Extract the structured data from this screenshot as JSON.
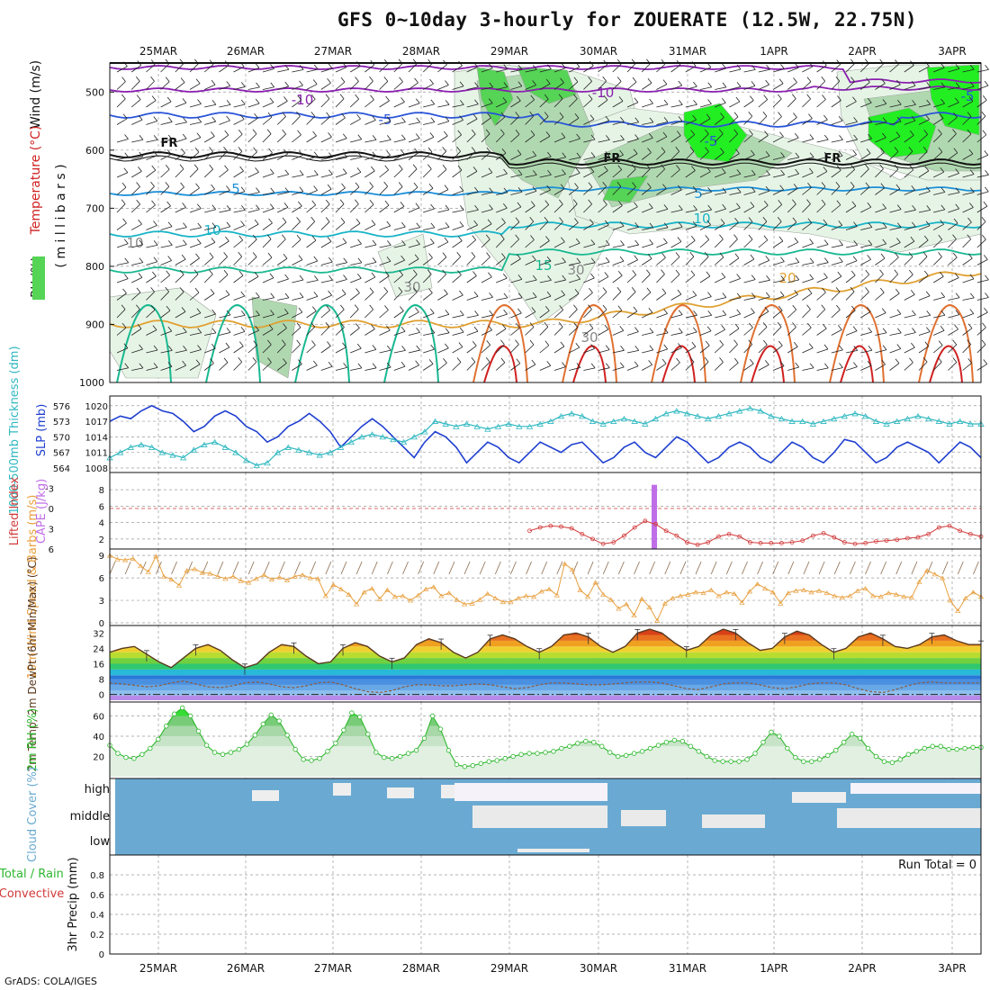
{
  "title": "GFS 0~10day 3-hourly for ZOUERATE (12.5W, 22.75N)",
  "credit": "GrADS: COLA/IGES",
  "date_labels": [
    "25MAR",
    "26MAR",
    "27MAR",
    "28MAR",
    "29MAR",
    "30MAR",
    "31MAR",
    "1APR",
    "2APR",
    "3APR"
  ],
  "colors": {
    "temp_m10": "#8a1fb0",
    "temp_m5": "#2a55d8",
    "temp_fr": "#111111",
    "temp_5": "#1b8fd8",
    "temp_10": "#18b4c8",
    "temp_15": "#18b890",
    "temp_20": "#e0a030",
    "temp_25": "#e07030",
    "temp_30": "#d02020",
    "rh_light": "#e6f4e6",
    "rh_mid": "#b0d8b0",
    "rh_dark": "#55d455",
    "rh_bright": "#22ee22",
    "slp": "#1f3fd0",
    "thickness": "#2fb8c0",
    "lifted_index": "#d23a3a",
    "cape": "#c06ee8",
    "wind_speed": "#e8a040",
    "cloud": "#6aaad2",
    "rh2m": "#2db82d"
  },
  "chart_data": [
    {
      "type": "line",
      "name": "Wind / Temperature / RH cross-section",
      "ylabel": "( m i l l i b a r s )",
      "ylabels_left": [
        "Wind (m/s)",
        "Temperature (°C)",
        "RH (%)"
      ],
      "yticks": [
        500,
        600,
        700,
        800,
        900,
        1000
      ],
      "ylim": [
        1000,
        450
      ],
      "x_axis": "time (3-hourly)",
      "contour_labels": [
        "-10",
        "-10",
        "-5",
        "-5",
        "-5",
        "FR",
        "FR",
        "FR",
        "5",
        "5",
        "10",
        "10",
        "15",
        "20",
        "10",
        "30",
        "30",
        "30"
      ]
    },
    {
      "type": "line",
      "name": "SLP / 1000-500mb thickness",
      "ylabel_left": "1000-500mb Thickness (dm)",
      "ylabel_right": "SLP (mb)",
      "yticks_left": [
        564,
        567,
        570,
        573,
        576
      ],
      "yticks_right": [
        1008,
        1011,
        1014,
        1017,
        1020
      ],
      "slp": [
        1017,
        1018,
        1017.5,
        1019,
        1020,
        1019,
        1018.5,
        1017,
        1015,
        1016,
        1018,
        1019,
        1018,
        1016,
        1015,
        1013,
        1014,
        1016,
        1017,
        1018.5,
        1017,
        1015,
        1012,
        1014,
        1016,
        1017.5,
        1016,
        1014,
        1012,
        1010,
        1013,
        1015,
        1014,
        1012,
        1009,
        1011,
        1013,
        1012,
        1010,
        1009,
        1011,
        1013,
        1012,
        1011,
        1012.5,
        1013,
        1011,
        1009,
        1010,
        1012,
        1013,
        1011,
        1010,
        1012,
        1014,
        1013,
        1011,
        1009,
        1010,
        1012,
        1013,
        1012,
        1010,
        1009,
        1011,
        1013,
        1012,
        1010,
        1009,
        1011,
        1013.5,
        1013,
        1011,
        1009,
        1010,
        1012,
        1013,
        1012,
        1011,
        1009,
        1011,
        1013,
        1012,
        1010
      ],
      "thickness": [
        566,
        567,
        568,
        568.5,
        568,
        567,
        566.5,
        566,
        567.5,
        568.5,
        569,
        568,
        567,
        565.5,
        564.5,
        565,
        567,
        568,
        567.5,
        567,
        566.5,
        567,
        568,
        569,
        570,
        570.5,
        570,
        569.5,
        569,
        570,
        571,
        573,
        572.5,
        572,
        572.5,
        572,
        571.5,
        572,
        572.5,
        572,
        572,
        572.5,
        573,
        574,
        574.5,
        574,
        573,
        572.5,
        573,
        573.5,
        573,
        572.5,
        573.5,
        574.5,
        575,
        574.5,
        574,
        573.5,
        574,
        574.5,
        575,
        575.5,
        575,
        574,
        573.5,
        573,
        573,
        572.5,
        573,
        573.5,
        574,
        574.5,
        574,
        573,
        572.5,
        573,
        573.5,
        574,
        573.5,
        573,
        572.5,
        573,
        572.5,
        572.5
      ]
    },
    {
      "type": "bar",
      "name": "Lifted Index / CAPE",
      "ylabel_left": "Lifted Index",
      "ylabel_right": "CAPE (J/kg)",
      "yticks_left": [
        -3,
        0,
        3,
        6
      ],
      "yticks_right": [
        2,
        4,
        6,
        8
      ],
      "lifted_index_dashed_zero": 0,
      "cape_spike": {
        "label": "31MAR",
        "value": 8.6
      },
      "lifted_index": [
        null,
        null,
        null,
        null,
        null,
        null,
        null,
        null,
        null,
        null,
        null,
        null,
        null,
        null,
        null,
        null,
        null,
        null,
        null,
        null,
        null,
        null,
        null,
        null,
        null,
        null,
        null,
        null,
        null,
        null,
        null,
        null,
        null,
        null,
        null,
        null,
        null,
        null,
        null,
        null,
        3,
        3.4,
        3.6,
        3.5,
        3.3,
        2.6,
        2,
        1.4,
        1.6,
        2.4,
        3.4,
        4.2,
        3.8,
        3,
        2.4,
        1.6,
        1.3,
        1.6,
        2.3,
        2.6,
        2.3,
        1.6,
        1.5,
        1.5,
        1.5,
        1.6,
        1.8,
        2.4,
        2.7,
        2.2,
        1.6,
        1.4,
        1.5,
        1.7,
        1.8,
        1.9,
        2.1,
        2.2,
        2.6,
        3.4,
        3.6,
        3,
        2.6,
        2.3
      ]
    },
    {
      "type": "line",
      "name": "10m Wind Speed & Barbs",
      "ylabel": "10m Wind Speed & Barbs (m/s)",
      "yticks": [
        0,
        3,
        6,
        9
      ],
      "ylim": [
        0,
        9.5
      ],
      "values": [
        9,
        8.5,
        8.4,
        8.6,
        7.6,
        6.8,
        8.9,
        6.2,
        5.8,
        5,
        7,
        7.2,
        6.7,
        6.6,
        6.2,
        5.9,
        6.2,
        5.6,
        5.4,
        5.9,
        6.4,
        5.8,
        6.1,
        5.7,
        6.2,
        6.4,
        6,
        5.9,
        3.6,
        5.1,
        4.5,
        3.8,
        2.5,
        4.1,
        4.6,
        3.2,
        4.4,
        3.5,
        3.6,
        3,
        3.7,
        4.5,
        4.8,
        3.6,
        4,
        3.1,
        2.5,
        2.6,
        3.1,
        3.9,
        3.3,
        2.8,
        2.8,
        3.3,
        3.6,
        3.5,
        4.2,
        4.5,
        3.7,
        7.9,
        7.1,
        4.4,
        3.5,
        5.4,
        3.8,
        3.1,
        1.9,
        2.5,
        1,
        3.2,
        2.1,
        0.3,
        2.6,
        3.3,
        3.6,
        3.8,
        4.1,
        4,
        4.4,
        3.6,
        4.1,
        3.9,
        2.7,
        4.2,
        5.2,
        4.6,
        4.1,
        2.6,
        4,
        4.3,
        4.4,
        4.1,
        4.3,
        4,
        3.6,
        3.4,
        3.6,
        4.3,
        4.6,
        3.6,
        3.5,
        4,
        3.8,
        3.5,
        3.4,
        5.5,
        7,
        6.5,
        6,
        3,
        1.6,
        3.3,
        4.1,
        3.5
      ]
    },
    {
      "type": "area",
      "name": "2m Temp / 2m DewPt",
      "ylabel": "2m Temp, 2m DewPt (6hr Min/Max) (°C)",
      "yticks": [
        0,
        8,
        16,
        24,
        32
      ],
      "ylim": [
        -3,
        35
      ],
      "temp": [
        22,
        24,
        25,
        21,
        17,
        14,
        19,
        24,
        26,
        23,
        18,
        14,
        16,
        22,
        26,
        25,
        20,
        16,
        17,
        24,
        27,
        25,
        20,
        17,
        19,
        26,
        29,
        27,
        22,
        19,
        22,
        29,
        31,
        29,
        25,
        22,
        25,
        31,
        32,
        30,
        25,
        22,
        25,
        32,
        34,
        32,
        27,
        23,
        25,
        31,
        34,
        32,
        27,
        23,
        24,
        30,
        33,
        31,
        26,
        22,
        24,
        30,
        32,
        29,
        25,
        24,
        26,
        30,
        31,
        28,
        26,
        26
      ],
      "dewpt": [
        6,
        5.5,
        4.8,
        4,
        4.5,
        6,
        7,
        5.5,
        4,
        3.5,
        4.5,
        6,
        6.5,
        5.5,
        4,
        3.5,
        4.5,
        6,
        6.5,
        5,
        3,
        1.5,
        1,
        2,
        4,
        5,
        5,
        4.5,
        4.5,
        5,
        5.5,
        5,
        4,
        3,
        3.5,
        5,
        6,
        6,
        5.5,
        5,
        5,
        5.5,
        6,
        6.5,
        6.5,
        6,
        4.5,
        3,
        2.5,
        4,
        5.5,
        6,
        6,
        5,
        3.5,
        3,
        4,
        5.5,
        6,
        6,
        5,
        3,
        1.5,
        1,
        2.5,
        4.5,
        6,
        6.5,
        6,
        6,
        6,
        6
      ]
    },
    {
      "type": "area",
      "name": "2m RH",
      "ylabel": "2m RH (%)",
      "yticks": [
        20,
        40,
        60
      ],
      "ylim": [
        0,
        72
      ],
      "values": [
        31,
        23,
        19,
        18,
        22,
        28,
        37,
        50,
        62,
        68,
        60,
        45,
        31,
        24,
        22,
        24,
        27,
        32,
        41,
        52,
        61,
        55,
        41,
        27,
        17,
        16,
        18,
        25,
        33,
        46,
        63,
        59,
        42,
        24,
        19,
        18,
        20,
        23,
        26,
        38,
        60,
        47,
        26,
        12,
        10,
        11,
        13,
        15,
        16,
        18,
        20,
        22,
        23,
        23,
        24,
        25,
        28,
        30,
        33,
        35,
        34,
        30,
        24,
        20,
        21,
        23,
        25,
        28,
        31,
        34,
        36,
        35,
        30,
        25,
        20,
        16,
        15,
        15,
        15,
        17,
        23,
        34,
        44,
        40,
        28,
        19,
        15,
        15,
        17,
        21,
        26,
        34,
        42,
        38,
        28,
        20,
        15,
        14,
        17,
        22,
        25,
        28,
        30,
        30,
        27,
        27,
        28,
        29,
        29
      ]
    },
    {
      "type": "heatmap",
      "name": "Cloud Cover",
      "ylabel": "Cloud Cover (%)",
      "rows": [
        "high",
        "middle",
        "low"
      ],
      "color_scale": "white = 0%, blue = 100%"
    },
    {
      "type": "bar",
      "name": "3hr Precip",
      "ylabel": "3hr Precip (mm)",
      "ylabels_left": [
        "Total / Rain",
        "Convective"
      ],
      "yticks": [
        0,
        0.2,
        0.4,
        0.6,
        0.8
      ],
      "ylim": [
        0,
        1
      ],
      "annotation": "Run Total = 0",
      "values": []
    }
  ]
}
